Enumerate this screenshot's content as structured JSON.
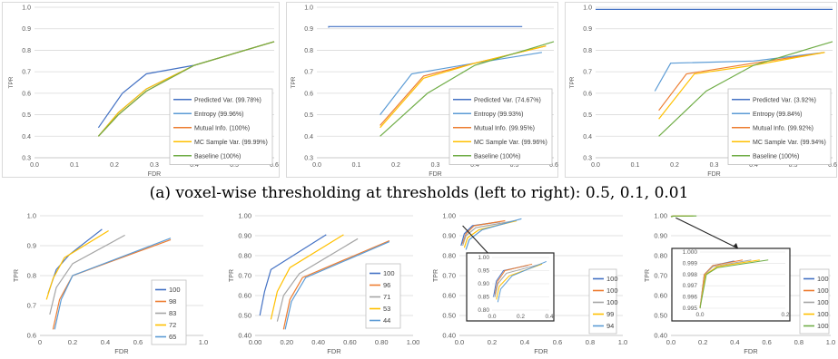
{
  "caption": "(a) voxel-wise thresholding at thresholds (left to right): 0.5, 0.1, 0.01",
  "colors": {
    "blue": "#4472c4",
    "orange": "#ed7d31",
    "gray": "#a5a5a5",
    "yellow": "#ffc000",
    "lightblue": "#5b9bd5",
    "green": "#70ad47"
  },
  "chart_data": [
    {
      "type": "line",
      "xlabel": "FDR",
      "ylabel": "TPR",
      "xlim": [
        0.0,
        0.6
      ],
      "ylim": [
        0.3,
        1.0
      ],
      "xticks": [
        "0.0",
        "0.1",
        "0.2",
        "0.3",
        "0.4",
        "0.5",
        "0.6"
      ],
      "yticks": [
        "0.3",
        "0.4",
        "0.5",
        "0.6",
        "0.7",
        "0.8",
        "0.9",
        "1.0"
      ],
      "legend": "bottom-right",
      "series": [
        {
          "name": "Predicted Var. (99.78%)",
          "color": "#4472c4",
          "points": [
            [
              0.16,
              0.44
            ],
            [
              0.22,
              0.6
            ],
            [
              0.28,
              0.69
            ],
            [
              0.4,
              0.73
            ],
            [
              0.6,
              0.84
            ]
          ]
        },
        {
          "name": "Entropy (99.96%)",
          "color": "#5b9bd5",
          "points": [
            [
              0.16,
              0.4
            ],
            [
              0.21,
              0.51
            ],
            [
              0.28,
              0.62
            ],
            [
              0.4,
              0.73
            ],
            [
              0.6,
              0.84
            ]
          ]
        },
        {
          "name": "Mutual Info. (100%)",
          "color": "#ed7d31",
          "points": [
            [
              0.16,
              0.4
            ],
            [
              0.21,
              0.5
            ],
            [
              0.28,
              0.61
            ],
            [
              0.4,
              0.73
            ],
            [
              0.6,
              0.84
            ]
          ]
        },
        {
          "name": "MC Sample Var. (99.99%)",
          "color": "#ffc000",
          "points": [
            [
              0.16,
              0.4
            ],
            [
              0.21,
              0.51
            ],
            [
              0.28,
              0.62
            ],
            [
              0.4,
              0.73
            ],
            [
              0.6,
              0.84
            ]
          ]
        },
        {
          "name": "Baseline (100%)",
          "color": "#70ad47",
          "points": [
            [
              0.16,
              0.4
            ],
            [
              0.21,
              0.5
            ],
            [
              0.28,
              0.61
            ],
            [
              0.4,
              0.73
            ],
            [
              0.6,
              0.84
            ]
          ]
        }
      ]
    },
    {
      "type": "line",
      "xlabel": "FDR",
      "ylabel": "TPR",
      "xlim": [
        0.0,
        0.6
      ],
      "ylim": [
        0.3,
        1.0
      ],
      "xticks": [
        "0.0",
        "0.1",
        "0.2",
        "0.3",
        "0.4",
        "0.5",
        "0.6"
      ],
      "yticks": [
        "0.3",
        "0.4",
        "0.5",
        "0.6",
        "0.7",
        "0.8",
        "0.9",
        "1.0"
      ],
      "legend": "bottom-right",
      "series": [
        {
          "name": "Predicted Var. (74.67%)",
          "color": "#4472c4",
          "points": [
            [
              0.03,
              0.905
            ],
            [
              0.03,
              0.91
            ],
            [
              0.52,
              0.91
            ]
          ]
        },
        {
          "name": "Entropy (99.93%)",
          "color": "#5b9bd5",
          "points": [
            [
              0.16,
              0.5
            ],
            [
              0.24,
              0.69
            ],
            [
              0.4,
              0.74
            ],
            [
              0.57,
              0.79
            ]
          ]
        },
        {
          "name": "Mutual Info. (99.95%)",
          "color": "#ed7d31",
          "points": [
            [
              0.16,
              0.45
            ],
            [
              0.27,
              0.68
            ],
            [
              0.4,
              0.74
            ],
            [
              0.58,
              0.82
            ]
          ]
        },
        {
          "name": "MC Sample Var. (99.96%)",
          "color": "#ffc000",
          "points": [
            [
              0.16,
              0.44
            ],
            [
              0.27,
              0.67
            ],
            [
              0.4,
              0.74
            ],
            [
              0.58,
              0.82
            ]
          ]
        },
        {
          "name": "Baseline (100%)",
          "color": "#70ad47",
          "points": [
            [
              0.16,
              0.4
            ],
            [
              0.28,
              0.6
            ],
            [
              0.4,
              0.73
            ],
            [
              0.6,
              0.84
            ]
          ]
        }
      ]
    },
    {
      "type": "line",
      "xlabel": "FDR",
      "ylabel": "TPR",
      "xlim": [
        0.0,
        0.6
      ],
      "ylim": [
        0.3,
        1.0
      ],
      "xticks": [
        "0.0",
        "0.1",
        "0.2",
        "0.3",
        "0.4",
        "0.5",
        "0.6"
      ],
      "yticks": [
        "0.3",
        "0.4",
        "0.5",
        "0.6",
        "0.7",
        "0.8",
        "0.9",
        "1.0"
      ],
      "legend": "bottom-right",
      "series": [
        {
          "name": "Predicted Var. (3.92%)",
          "color": "#4472c4",
          "points": [
            [
              0.0,
              0.99
            ],
            [
              0.6,
              0.99
            ]
          ]
        },
        {
          "name": "Entropy (99.84%)",
          "color": "#5b9bd5",
          "points": [
            [
              0.15,
              0.61
            ],
            [
              0.19,
              0.74
            ],
            [
              0.4,
              0.75
            ],
            [
              0.58,
              0.79
            ]
          ]
        },
        {
          "name": "Mutual Info. (99.92%)",
          "color": "#ed7d31",
          "points": [
            [
              0.16,
              0.52
            ],
            [
              0.23,
              0.69
            ],
            [
              0.4,
              0.74
            ],
            [
              0.58,
              0.79
            ]
          ]
        },
        {
          "name": "MC Sample Var. (99.94%)",
          "color": "#ffc000",
          "points": [
            [
              0.16,
              0.48
            ],
            [
              0.25,
              0.69
            ],
            [
              0.4,
              0.73
            ],
            [
              0.58,
              0.79
            ]
          ]
        },
        {
          "name": "Baseline (100%)",
          "color": "#70ad47",
          "points": [
            [
              0.16,
              0.4
            ],
            [
              0.28,
              0.61
            ],
            [
              0.4,
              0.73
            ],
            [
              0.6,
              0.84
            ]
          ]
        }
      ]
    },
    {
      "type": "line",
      "xlabel": "FDR",
      "ylabel": "TPR",
      "xlim": [
        0.0,
        1.0
      ],
      "ylim": [
        0.6,
        1.0
      ],
      "xticks": [
        "0",
        "0.2",
        "0.4",
        "0.6",
        "0.8",
        "1.0"
      ],
      "yticks": [
        "0.6",
        "0.7",
        "0.8",
        "0.9",
        "1.0"
      ],
      "legend": "bottom-right",
      "series": [
        {
          "name": "100",
          "color": "#4472c4",
          "points": [
            [
              0.05,
              0.74
            ],
            [
              0.1,
              0.82
            ],
            [
              0.18,
              0.87
            ],
            [
              0.38,
              0.955
            ]
          ]
        },
        {
          "name": "98",
          "color": "#ed7d31",
          "points": [
            [
              0.08,
              0.62
            ],
            [
              0.12,
              0.72
            ],
            [
              0.2,
              0.8
            ],
            [
              0.8,
              0.92
            ]
          ]
        },
        {
          "name": "83",
          "color": "#a5a5a5",
          "points": [
            [
              0.06,
              0.67
            ],
            [
              0.1,
              0.76
            ],
            [
              0.2,
              0.84
            ],
            [
              0.52,
              0.935
            ]
          ]
        },
        {
          "name": "72",
          "color": "#ffc000",
          "points": [
            [
              0.04,
              0.72
            ],
            [
              0.08,
              0.79
            ],
            [
              0.15,
              0.86
            ],
            [
              0.42,
              0.95
            ]
          ]
        },
        {
          "name": "65",
          "color": "#5b9bd5",
          "points": [
            [
              0.09,
              0.62
            ],
            [
              0.13,
              0.72
            ],
            [
              0.2,
              0.8
            ],
            [
              0.8,
              0.925
            ]
          ]
        }
      ]
    },
    {
      "type": "line",
      "xlabel": "FDR",
      "ylabel": "TPR",
      "xlim": [
        0.0,
        1.0
      ],
      "ylim": [
        0.4,
        1.0
      ],
      "xticks": [
        "0.00",
        "0.20",
        "0.40",
        "0.60",
        "0.80",
        "1.00"
      ],
      "yticks": [
        "0.40",
        "0.50",
        "0.60",
        "0.70",
        "0.80",
        "0.90",
        "1.00"
      ],
      "legend": "bottom-right",
      "series": [
        {
          "name": "100",
          "color": "#4472c4",
          "points": [
            [
              0.03,
              0.5
            ],
            [
              0.06,
              0.62
            ],
            [
              0.1,
              0.73
            ],
            [
              0.45,
              0.905
            ]
          ]
        },
        {
          "name": "96",
          "color": "#ed7d31",
          "points": [
            [
              0.18,
              0.43
            ],
            [
              0.22,
              0.58
            ],
            [
              0.3,
              0.69
            ],
            [
              0.85,
              0.875
            ]
          ]
        },
        {
          "name": "71",
          "color": "#a5a5a5",
          "points": [
            [
              0.14,
              0.47
            ],
            [
              0.18,
              0.6
            ],
            [
              0.28,
              0.71
            ],
            [
              0.65,
              0.885
            ]
          ]
        },
        {
          "name": "53",
          "color": "#ffc000",
          "points": [
            [
              0.1,
              0.48
            ],
            [
              0.14,
              0.62
            ],
            [
              0.22,
              0.74
            ],
            [
              0.56,
              0.905
            ]
          ]
        },
        {
          "name": "44",
          "color": "#5b9bd5",
          "points": [
            [
              0.19,
              0.43
            ],
            [
              0.23,
              0.57
            ],
            [
              0.32,
              0.69
            ],
            [
              0.85,
              0.87
            ]
          ]
        }
      ]
    },
    {
      "type": "line",
      "xlabel": "FDR",
      "ylabel": "TPR",
      "xlim": [
        0.0,
        1.0
      ],
      "ylim": [
        0.4,
        1.0
      ],
      "xticks": [
        "0.0",
        "0.2",
        "0.4",
        "0.6",
        "0.8",
        "1.0"
      ],
      "yticks": [
        "0.40",
        "0.50",
        "0.60",
        "0.70",
        "0.80",
        "0.90",
        "1.00"
      ],
      "legend": "right",
      "series": [
        {
          "name": "100",
          "color": "#4472c4",
          "points": [
            [
              0.01,
              0.85
            ],
            [
              0.03,
              0.91
            ],
            [
              0.08,
              0.95
            ],
            [
              0.25,
              0.97
            ]
          ]
        },
        {
          "name": "100",
          "color": "#ed7d31",
          "points": [
            [
              0.02,
              0.86
            ],
            [
              0.04,
              0.91
            ],
            [
              0.09,
              0.95
            ],
            [
              0.28,
              0.975
            ]
          ]
        },
        {
          "name": "100",
          "color": "#a5a5a5",
          "points": [
            [
              0.02,
              0.85
            ],
            [
              0.04,
              0.9
            ],
            [
              0.1,
              0.94
            ],
            [
              0.34,
              0.975
            ]
          ]
        },
        {
          "name": "99",
          "color": "#ffc000",
          "points": [
            [
              0.03,
              0.84
            ],
            [
              0.05,
              0.89
            ],
            [
              0.12,
              0.93
            ],
            [
              0.35,
              0.975
            ]
          ]
        },
        {
          "name": "94",
          "color": "#5b9bd5",
          "points": [
            [
              0.04,
              0.83
            ],
            [
              0.06,
              0.88
            ],
            [
              0.14,
              0.93
            ],
            [
              0.38,
              0.985
            ]
          ]
        }
      ],
      "inset": {
        "xlim": [
          0.0,
          0.4
        ],
        "ylim": [
          0.8,
          1.0
        ],
        "xticks": [
          "0.0",
          "0.2",
          "0.4"
        ],
        "yticks": [
          "0.80",
          "0.85",
          "0.90",
          "0.95",
          "1.00"
        ]
      }
    },
    {
      "type": "line",
      "xlabel": "FDR",
      "ylabel": "TPR",
      "xlim": [
        0.0,
        1.0
      ],
      "ylim": [
        0.4,
        1.0
      ],
      "xticks": [
        "0.0",
        "0.2",
        "0.4",
        "0.6",
        "0.8",
        "1.0"
      ],
      "yticks": [
        "0.40",
        "0.50",
        "0.60",
        "0.70",
        "0.80",
        "0.90",
        "1.00"
      ],
      "legend": "right",
      "series": [
        {
          "name": "100",
          "color": "#4472c4",
          "points": [
            [
              0.0,
              0.995
            ],
            [
              0.01,
              0.998
            ],
            [
              0.03,
              0.9988
            ],
            [
              0.08,
              0.9992
            ]
          ]
        },
        {
          "name": "100",
          "color": "#ed7d31",
          "points": [
            [
              0.0,
              0.995
            ],
            [
              0.01,
              0.998
            ],
            [
              0.03,
              0.9988
            ],
            [
              0.1,
              0.9993
            ]
          ]
        },
        {
          "name": "100",
          "color": "#a5a5a5",
          "points": [
            [
              0.0,
              0.995
            ],
            [
              0.012,
              0.998
            ],
            [
              0.03,
              0.9987
            ],
            [
              0.12,
              0.9993
            ]
          ]
        },
        {
          "name": "100",
          "color": "#ffc000",
          "points": [
            [
              0.0,
              0.995
            ],
            [
              0.013,
              0.998
            ],
            [
              0.04,
              0.9987
            ],
            [
              0.14,
              0.9993
            ]
          ]
        },
        {
          "name": "100",
          "color": "#70ad47",
          "points": [
            [
              0.0,
              0.995
            ],
            [
              0.015,
              0.998
            ],
            [
              0.04,
              0.9986
            ],
            [
              0.16,
              0.9993
            ]
          ]
        }
      ],
      "inset": {
        "xlim": [
          0.0,
          0.2
        ],
        "ylim": [
          0.995,
          1.0
        ],
        "xticks": [
          "0.0",
          "0.2"
        ],
        "yticks": [
          "0.995",
          "0.996",
          "0.997",
          "0.998",
          "0.999",
          "1.000"
        ]
      }
    }
  ]
}
